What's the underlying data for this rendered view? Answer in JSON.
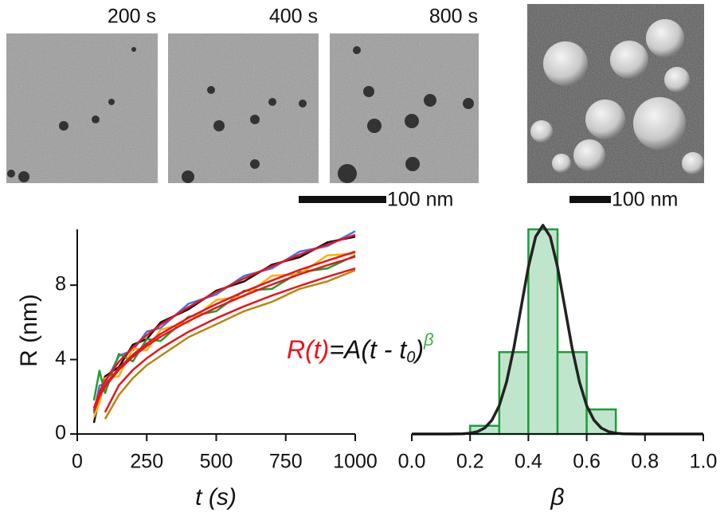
{
  "figure": {
    "image_labels": [
      "200 s",
      "400 s",
      "800 s"
    ],
    "scale_bars": [
      "100 nm",
      "100 nm"
    ]
  },
  "chart_data": [
    {
      "type": "line",
      "xlabel": "t (s)",
      "ylabel": "R (nm)",
      "annotation": [
        "R(t)",
        "=A(t - t",
        "0",
        ")",
        "β"
      ],
      "x": [
        60,
        80,
        100,
        150,
        200,
        250,
        300,
        400,
        500,
        600,
        700,
        800,
        900,
        1000
      ],
      "xlim": [
        0,
        1000
      ],
      "xticks": [
        0,
        250,
        500,
        750,
        1000
      ],
      "ylim": [
        0,
        11
      ],
      "yticks": [
        0,
        4,
        8
      ],
      "series": [
        {
          "color": "#4a6fe3",
          "values": [
            1.1,
            2.6,
            2.7,
            4.2,
            4.5,
            5.5,
            5.7,
            7.0,
            7.5,
            8.5,
            8.9,
            9.8,
            10.1,
            10.9
          ]
        },
        {
          "color": "#111111",
          "values": [
            0.6,
            2.0,
            3.1,
            3.6,
            4.8,
            5.1,
            6.0,
            6.7,
            7.7,
            8.2,
            9.1,
            9.5,
            10.3,
            10.6
          ]
        },
        {
          "color": "#1f9e2a",
          "values": [
            1.8,
            3.4,
            2.2,
            4.3,
            3.9,
            5.1,
            5.0,
            6.3,
            6.6,
            7.7,
            7.8,
            8.7,
            8.9,
            9.6
          ]
        },
        {
          "color": "#ffb000",
          "values": [
            0.9,
            1.7,
            3.0,
            3.1,
            4.6,
            4.5,
            5.6,
            6.0,
            7.2,
            7.4,
            8.5,
            8.6,
            9.6,
            9.7
          ]
        },
        {
          "color": "#b8860b",
          "values": [
            null,
            null,
            0.8,
            2.1,
            3.0,
            3.7,
            4.2,
            5.2,
            5.9,
            6.6,
            7.1,
            7.8,
            8.2,
            8.8
          ]
        },
        {
          "color": "#e8141e",
          "values": [
            1.38,
            2.26,
            2.85,
            3.88,
            4.66,
            5.31,
            5.88,
            6.82,
            7.63,
            8.36,
            9.02,
            9.64,
            10.19,
            10.71
          ]
        },
        {
          "color": "#e8141e",
          "values": [
            1.23,
            2.01,
            2.54,
            3.45,
            4.15,
            4.73,
            5.23,
            6.07,
            6.79,
            7.44,
            8.03,
            8.58,
            9.07,
            9.53
          ]
        },
        {
          "color": "#e8141e",
          "values": [
            1.26,
            2.07,
            2.61,
            3.55,
            4.26,
            4.86,
            5.38,
            6.24,
            6.98,
            7.65,
            8.25,
            8.82,
            9.32,
            9.8
          ]
        },
        {
          "color": "#e8141e",
          "values": [
            null,
            null,
            1.17,
            2.62,
            3.44,
            4.07,
            4.6,
            5.49,
            6.22,
            6.86,
            7.44,
            7.96,
            8.45,
            8.9
          ]
        }
      ]
    },
    {
      "type": "histogram",
      "xlabel": "β",
      "bins": [
        0.2,
        0.3,
        0.4,
        0.5,
        0.6,
        0.7
      ],
      "values": [
        1,
        10,
        25,
        10,
        3
      ],
      "color": "#bfe6cc",
      "edge_color": "#1f9e3a",
      "xlim": [
        0,
        1
      ],
      "xticks": [
        {
          "value": 0,
          "label": "0.0"
        },
        0.2,
        0.4,
        0.6,
        0.8,
        {
          "value": 1,
          "label": "1.0"
        }
      ],
      "ylim": [
        0,
        25
      ],
      "fit": {
        "color": "#222222",
        "x": [
          0,
          0.1,
          0.125,
          0.15,
          0.175,
          0.2,
          0.225,
          0.25,
          0.275,
          0.3,
          0.325,
          0.35,
          0.375,
          0.4,
          0.425,
          0.45,
          0.475,
          0.5,
          0.525,
          0.55,
          0.575,
          0.6,
          0.625,
          0.65,
          0.675,
          0.7,
          0.725,
          0.75,
          0.775,
          0.8,
          1.0
        ],
        "values": [
          0,
          0,
          0,
          0.01,
          0.03,
          0.1,
          0.28,
          0.73,
          1.68,
          3.45,
          6.36,
          10.5,
          15.5,
          20.4,
          24.1,
          25.5,
          24.1,
          20.4,
          15.5,
          10.5,
          6.36,
          3.45,
          1.68,
          0.73,
          0.28,
          0.1,
          0.03,
          0.01,
          0,
          0,
          0
        ]
      }
    }
  ]
}
